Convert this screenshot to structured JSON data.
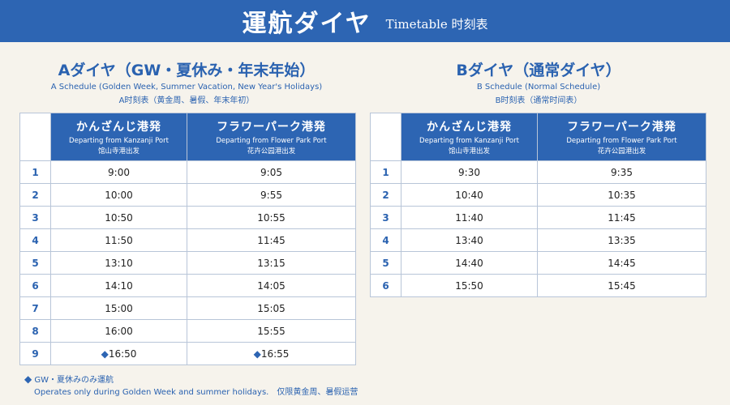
{
  "header": {
    "title_jp": "運航ダイヤ",
    "title_en": "Timetable 时刻表"
  },
  "scheduleA": {
    "title": "Aダイヤ（GW・夏休み・年末年始）",
    "subtitle_en": "A Schedule (Golden Week, Summer Vacation, New Year's Holidays)",
    "subtitle_cn": "A时刻表（黄金周、暑假、年末年初）",
    "col1": {
      "jp": "かんざんじ港発",
      "en": "Departing from Kanzanji Port",
      "cn": "馆山寺港出发"
    },
    "col2": {
      "jp": "フラワーパーク港発",
      "en": "Departing from Flower Park Port",
      "cn": "花卉公园港出发"
    },
    "rows": [
      {
        "n": "1",
        "a": "9:00",
        "b": "9:05"
      },
      {
        "n": "2",
        "a": "10:00",
        "b": "9:55"
      },
      {
        "n": "3",
        "a": "10:50",
        "b": "10:55"
      },
      {
        "n": "4",
        "a": "11:50",
        "b": "11:45"
      },
      {
        "n": "5",
        "a": "13:10",
        "b": "13:15"
      },
      {
        "n": "6",
        "a": "14:10",
        "b": "14:05"
      },
      {
        "n": "7",
        "a": "15:00",
        "b": "15:05"
      },
      {
        "n": "8",
        "a": "16:00",
        "b": "15:55"
      },
      {
        "n": "9",
        "a": "16:50",
        "b": "16:55"
      }
    ]
  },
  "scheduleB": {
    "title": "Bダイヤ（通常ダイヤ）",
    "subtitle_en": "B Schedule (Normal Schedule)",
    "subtitle_cn": "B时刻表（通常时间表）",
    "col1": {
      "jp": "かんざんじ港発",
      "en": "Departing from Kanzanji Port",
      "cn": "馆山寺港出发"
    },
    "col2": {
      "jp": "フラワーパーク港発",
      "en": "Departing from Flower Park Port",
      "cn": "花卉公园港出发"
    },
    "rows": [
      {
        "n": "1",
        "a": "9:30",
        "b": "9:35"
      },
      {
        "n": "2",
        "a": "10:40",
        "b": "10:35"
      },
      {
        "n": "3",
        "a": "11:40",
        "b": "11:45"
      },
      {
        "n": "4",
        "a": "13:40",
        "b": "13:35"
      },
      {
        "n": "5",
        "a": "14:40",
        "b": "14:45"
      },
      {
        "n": "6",
        "a": "15:50",
        "b": "15:45"
      }
    ]
  },
  "footnote": {
    "symbol": "◆",
    "line1": "GW・夏休みのみ運航",
    "line2": "Operates only during Golden Week and summer holidays.　仅限黄金周、暑假运营"
  }
}
